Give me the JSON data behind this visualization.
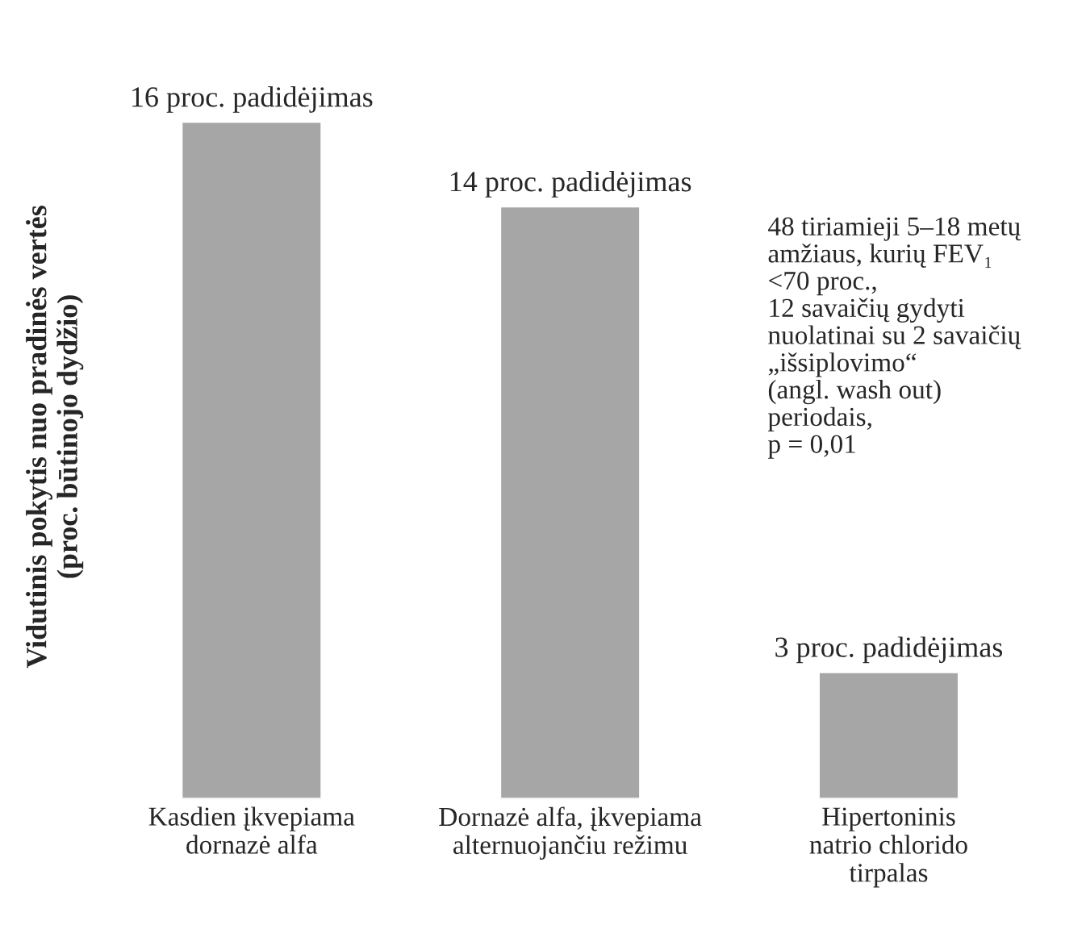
{
  "chart_data": {
    "type": "bar",
    "ylabel": "Vidutinis pokytis nuo pradinės vertės\n(proc. būtinojo dydžio)",
    "categories": [
      "Kasdien įkvepiama\ndornazė alfa",
      "Dornazė alfa, įkvepiama\nalternuojančiu režimu",
      "Hipertoninis\nnatrio chlorido\ntirpalas"
    ],
    "values": [
      16,
      14,
      3
    ],
    "value_labels": [
      "16 proc. padidėjimas",
      "14 proc. padidėjimas",
      "3 proc. padidėjimas"
    ],
    "color": "#a6a6a6",
    "annotations": [
      {
        "text": "48 tiriamieji 5–18 metų\namžiaus, kurių FEV₁\n<70 proc.,\n12 savaičių gydyti\nnuolatinai su 2 savaičių\n„išsiplovimo“\n(angl. wash out)\nperiodais,\np = 0,01"
      }
    ],
    "grid": false,
    "legend": false
  }
}
